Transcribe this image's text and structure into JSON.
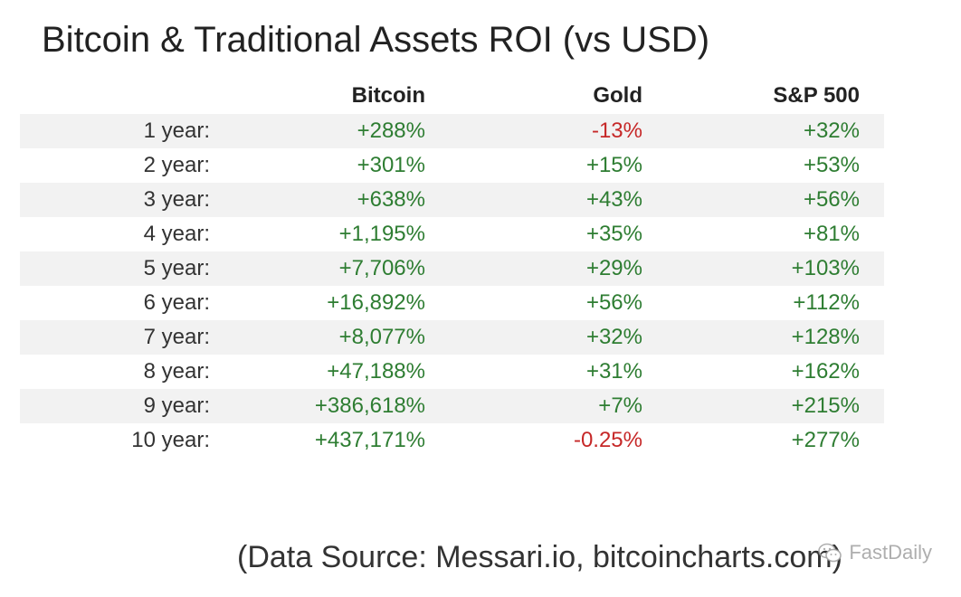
{
  "colors": {
    "positive": "#2e7d32",
    "negative": "#c62828",
    "shade": "#f2f2f2"
  },
  "chart_data": {
    "type": "table",
    "title": "Bitcoin & Traditional Assets ROI (vs USD)",
    "columns": [
      "",
      "Bitcoin",
      "Gold",
      "S&P 500"
    ],
    "rows": [
      {
        "label": "1 year:",
        "values": [
          "+288%",
          "-13%",
          "+32%"
        ]
      },
      {
        "label": "2 year:",
        "values": [
          "+301%",
          "+15%",
          "+53%"
        ]
      },
      {
        "label": "3 year:",
        "values": [
          "+638%",
          "+43%",
          "+56%"
        ]
      },
      {
        "label": "4 year:",
        "values": [
          "+1,195%",
          "+35%",
          "+81%"
        ]
      },
      {
        "label": "5 year:",
        "values": [
          "+7,706%",
          "+29%",
          "+103%"
        ]
      },
      {
        "label": "6 year:",
        "values": [
          "+16,892%",
          "+56%",
          "+112%"
        ]
      },
      {
        "label": "7 year:",
        "values": [
          "+8,077%",
          "+32%",
          "+128%"
        ]
      },
      {
        "label": "8 year:",
        "values": [
          "+47,188%",
          "+31%",
          "+162%"
        ]
      },
      {
        "label": "9 year:",
        "values": [
          "+386,618%",
          "+7%",
          "+215%"
        ]
      },
      {
        "label": "10 year:",
        "values": [
          "+437,171%",
          "-0.25%",
          "+277%"
        ]
      }
    ],
    "source": "(Data Source: Messari.io, bitcoincharts.com)"
  },
  "watermark": {
    "text": "FastDaily",
    "icon": "wechat-icon"
  }
}
